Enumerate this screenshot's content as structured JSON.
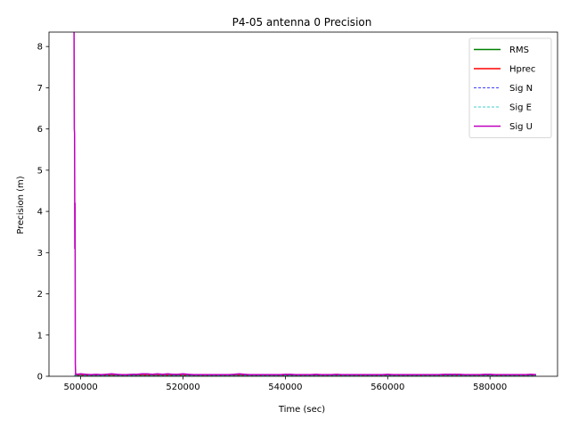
{
  "chart_data": {
    "type": "line",
    "title": "P4-05 antenna 0 Precision",
    "xlabel": "Time (sec)",
    "ylabel": "Precision (m)",
    "xlim": [
      493800,
      593200
    ],
    "ylim": [
      0,
      8.35
    ],
    "xticks": [
      500000,
      520000,
      540000,
      560000,
      580000
    ],
    "xtick_labels": [
      "500000",
      "520000",
      "540000",
      "560000",
      "580000"
    ],
    "yticks": [
      0,
      1,
      2,
      3,
      4,
      5,
      6,
      7,
      8
    ],
    "ytick_labels": [
      "0",
      "1",
      "2",
      "3",
      "4",
      "5",
      "6",
      "7",
      "8"
    ],
    "grid": false,
    "legend_position": "top-right",
    "series": [
      {
        "name": "RMS",
        "color": "#008000",
        "style": "solid",
        "x": [
          498800,
          498900,
          499000,
          500000,
          510000,
          520000,
          530000,
          540000,
          550000,
          560000,
          570000,
          580000,
          589000
        ],
        "y": [
          0.02,
          0.02,
          0.02,
          0.02,
          0.02,
          0.02,
          0.02,
          0.02,
          0.02,
          0.02,
          0.02,
          0.02,
          0.02
        ]
      },
      {
        "name": "Hprec",
        "color": "#ff0000",
        "style": "solid",
        "x": [
          498800,
          498900,
          499000,
          500000,
          510000,
          520000,
          530000,
          540000,
          550000,
          560000,
          570000,
          580000,
          589000
        ],
        "y": [
          0.03,
          0.03,
          0.03,
          0.03,
          0.03,
          0.03,
          0.03,
          0.03,
          0.03,
          0.03,
          0.03,
          0.03,
          0.03
        ]
      },
      {
        "name": "Sig N",
        "color": "#0000ff",
        "style": "dashed",
        "x": [
          498800,
          499000,
          500000,
          510000,
          520000,
          530000,
          540000,
          550000,
          560000,
          570000,
          580000,
          589000
        ],
        "y": [
          0.02,
          0.02,
          0.02,
          0.02,
          0.02,
          0.02,
          0.02,
          0.02,
          0.02,
          0.02,
          0.02,
          0.02
        ]
      },
      {
        "name": "Sig E",
        "color": "#00bfbf",
        "style": "dashed",
        "x": [
          498800,
          499000,
          500000,
          510000,
          520000,
          530000,
          540000,
          550000,
          560000,
          570000,
          580000,
          589000
        ],
        "y": [
          0.02,
          0.02,
          0.02,
          0.02,
          0.02,
          0.02,
          0.02,
          0.02,
          0.02,
          0.02,
          0.02,
          0.02
        ]
      },
      {
        "name": "Sig U",
        "color": "#bf00bf",
        "style": "solid",
        "x": [
          498700,
          498750,
          498800,
          498850,
          498900,
          498950,
          499000,
          499100,
          499200,
          500000,
          501000,
          502000,
          503000,
          504000,
          505000,
          506000,
          507000,
          508000,
          509000,
          510000,
          511000,
          512000,
          513000,
          514000,
          515000,
          516000,
          517000,
          518000,
          519000,
          520000,
          521000,
          522000,
          523000,
          524000,
          525000,
          526000,
          527000,
          528000,
          529000,
          530000,
          531000,
          532000,
          533000,
          534000,
          535000,
          536000,
          537000,
          538000,
          539000,
          540000,
          541000,
          542000,
          543000,
          544000,
          545000,
          546000,
          547000,
          548000,
          549000,
          550000,
          551000,
          552000,
          553000,
          554000,
          555000,
          556000,
          557000,
          558000,
          559000,
          560000,
          561000,
          562000,
          563000,
          564000,
          565000,
          566000,
          567000,
          568000,
          569000,
          570000,
          571000,
          572000,
          573000,
          574000,
          575000,
          576000,
          577000,
          578000,
          579000,
          580000,
          581000,
          582000,
          583000,
          584000,
          585000,
          586000,
          587000,
          588000,
          589000
        ],
        "y": [
          8.35,
          6.0,
          5.9,
          3.1,
          4.2,
          0.3,
          0.05,
          0.06,
          0.05,
          0.06,
          0.05,
          0.04,
          0.05,
          0.04,
          0.05,
          0.06,
          0.05,
          0.04,
          0.04,
          0.05,
          0.05,
          0.06,
          0.06,
          0.05,
          0.06,
          0.05,
          0.06,
          0.05,
          0.05,
          0.06,
          0.05,
          0.04,
          0.04,
          0.04,
          0.04,
          0.04,
          0.04,
          0.04,
          0.04,
          0.05,
          0.06,
          0.05,
          0.04,
          0.04,
          0.04,
          0.04,
          0.04,
          0.04,
          0.04,
          0.05,
          0.05,
          0.04,
          0.04,
          0.04,
          0.04,
          0.05,
          0.04,
          0.04,
          0.04,
          0.05,
          0.04,
          0.04,
          0.04,
          0.04,
          0.04,
          0.04,
          0.04,
          0.04,
          0.04,
          0.05,
          0.04,
          0.04,
          0.04,
          0.04,
          0.04,
          0.04,
          0.04,
          0.04,
          0.04,
          0.04,
          0.05,
          0.05,
          0.05,
          0.05,
          0.04,
          0.04,
          0.04,
          0.04,
          0.05,
          0.05,
          0.04,
          0.04,
          0.04,
          0.04,
          0.04,
          0.04,
          0.04,
          0.05,
          0.04
        ]
      }
    ]
  }
}
